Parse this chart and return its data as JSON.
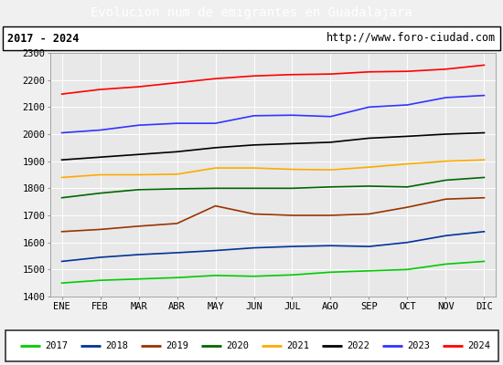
{
  "title": "Evolucion num de emigrantes en Guadalajara",
  "title_bg": "#5b9bd5",
  "subtitle_left": "2017 - 2024",
  "subtitle_right": "http://www.foro-ciudad.com",
  "months": [
    "ENE",
    "FEB",
    "MAR",
    "ABR",
    "MAY",
    "JUN",
    "JUL",
    "AGO",
    "SEP",
    "OCT",
    "NOV",
    "DIC"
  ],
  "ylim": [
    1400,
    2300
  ],
  "yticks": [
    1400,
    1500,
    1600,
    1700,
    1800,
    1900,
    2000,
    2100,
    2200,
    2300
  ],
  "series": {
    "2017": {
      "color": "#00cc00",
      "values": [
        1450,
        1460,
        1465,
        1470,
        1478,
        1475,
        1480,
        1490,
        1495,
        1500,
        1520,
        1530
      ]
    },
    "2018": {
      "color": "#003399",
      "values": [
        1530,
        1545,
        1555,
        1562,
        1570,
        1580,
        1585,
        1588,
        1585,
        1600,
        1625,
        1640
      ]
    },
    "2019": {
      "color": "#993300",
      "values": [
        1640,
        1648,
        1660,
        1670,
        1735,
        1705,
        1700,
        1700,
        1705,
        1730,
        1760,
        1765
      ]
    },
    "2020": {
      "color": "#006600",
      "values": [
        1765,
        1782,
        1795,
        1798,
        1800,
        1800,
        1800,
        1805,
        1808,
        1805,
        1830,
        1840
      ]
    },
    "2021": {
      "color": "#ffaa00",
      "values": [
        1840,
        1850,
        1850,
        1852,
        1875,
        1875,
        1870,
        1868,
        1878,
        1890,
        1900,
        1905
      ]
    },
    "2022": {
      "color": "#000000",
      "values": [
        1905,
        1915,
        1925,
        1935,
        1950,
        1960,
        1965,
        1970,
        1985,
        1992,
        2000,
        2005
      ]
    },
    "2023": {
      "color": "#3333ff",
      "values": [
        2005,
        2015,
        2033,
        2040,
        2040,
        2068,
        2070,
        2065,
        2100,
        2108,
        2135,
        2143
      ]
    },
    "2024": {
      "color": "#ff0000",
      "values": [
        2148,
        2165,
        2175,
        2190,
        2205,
        2215,
        2220,
        2222,
        2230,
        2232,
        2240,
        2255
      ]
    }
  },
  "legend_order": [
    "2017",
    "2018",
    "2019",
    "2020",
    "2021",
    "2022",
    "2023",
    "2024"
  ],
  "bg_plot": "#e8e8e8",
  "bg_fig": "#f0f0f0",
  "grid_color": "#ffffff",
  "line_width": 1.2
}
